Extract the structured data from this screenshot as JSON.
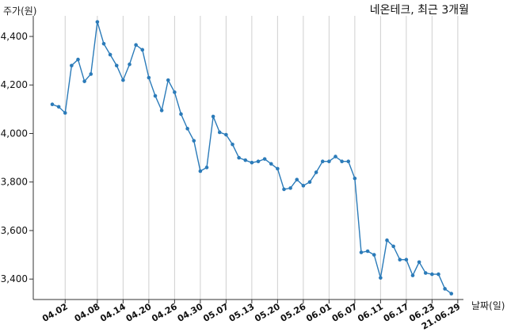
{
  "chart_data": {
    "type": "line",
    "title": "네온테크, 최근 3개월",
    "ylabel": "주가(원)",
    "xlabel": "날짜(일)",
    "ylim": [
      3320,
      4480
    ],
    "grid": "vertical",
    "line_color": "#2b7bb9",
    "y_ticks": [
      3400,
      3600,
      3800,
      4000,
      4200,
      4400
    ],
    "y_tick_labels": [
      "3,400",
      "3,600",
      "3,800",
      "4,000",
      "4,200",
      "4,400"
    ],
    "x_tick_labels": [
      "04.02",
      "04.08",
      "04.14",
      "04.20",
      "04.26",
      "04.30",
      "05.07",
      "05.13",
      "05.20",
      "05.26",
      "06.01",
      "06.07",
      "06.11",
      "06.17",
      "06.23",
      "21.06.29"
    ],
    "x_tick_indices": [
      2,
      7,
      11,
      15,
      19,
      23,
      27,
      31,
      35,
      39,
      43,
      47,
      51,
      55,
      59,
      63
    ],
    "series": [
      {
        "values": [
          4120,
          4110,
          4085,
          4280,
          4305,
          4215,
          4245,
          4460,
          4370,
          4325,
          4280,
          4220,
          4285,
          4365,
          4345,
          4230,
          4155,
          4095,
          4220,
          4170,
          4080,
          4020,
          3970,
          3845,
          3860,
          4070,
          4005,
          3995,
          3955,
          3900,
          3890,
          3880,
          3885,
          3895,
          3875,
          3855,
          3770,
          3775,
          3810,
          3785,
          3800,
          3840,
          3885,
          3885,
          3905,
          3885,
          3885,
          3815,
          3510,
          3515,
          3500,
          3405,
          3560,
          3535,
          3480,
          3480,
          3415,
          3470,
          3425,
          3420,
          3420,
          3360,
          3340
        ]
      }
    ]
  }
}
